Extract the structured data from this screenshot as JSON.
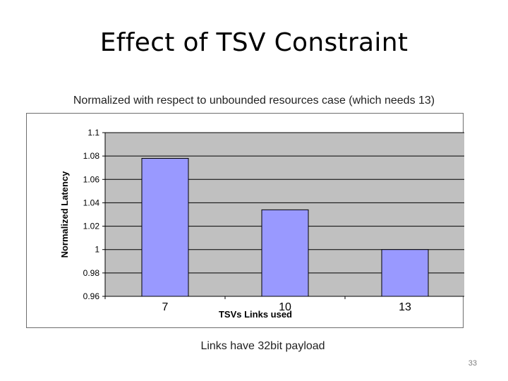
{
  "slide": {
    "title": "Effect of TSV Constraint",
    "footnote": "Links have 32bit payload",
    "page_number": "33"
  },
  "chart_data": {
    "type": "bar",
    "title": "Normalized with respect to unbounded resources case (which needs 13)",
    "xlabel": "TSVs Links used",
    "ylabel": "Normalized Latency",
    "categories": [
      "7",
      "10",
      "13"
    ],
    "values": [
      1.078,
      1.034,
      1.0
    ],
    "ylim": [
      0.96,
      1.1
    ],
    "yticks": [
      "0.96",
      "0.98",
      "1",
      "1.02",
      "1.04",
      "1.06",
      "1.08",
      "1.1"
    ],
    "grid": true,
    "legend": "none",
    "colors": {
      "bar": "#9999ff",
      "bar_stroke": "#000000",
      "plot_bg": "#c0c0c0",
      "grid": "#000000"
    }
  }
}
